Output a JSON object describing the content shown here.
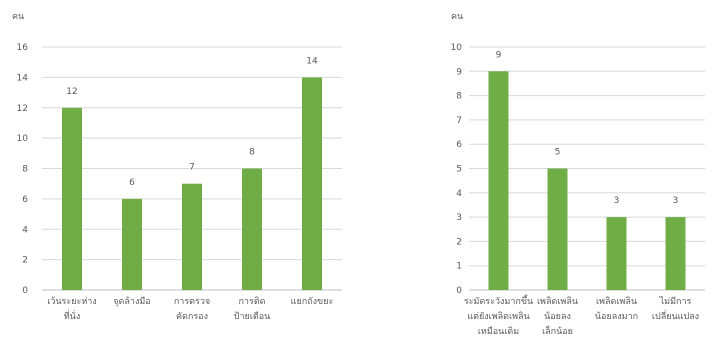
{
  "chart_data": [
    {
      "type": "bar",
      "ylabel": "คน",
      "ylim": [
        0,
        16
      ],
      "yticks": [
        0,
        2,
        4,
        6,
        8,
        10,
        12,
        14,
        16
      ],
      "grid": true,
      "bar_color": "#70ad47",
      "categories": [
        [
          "เว้นระยะห่าง",
          "ที่นั่ง"
        ],
        [
          "จุดล้างมือ"
        ],
        [
          "การตรวจ",
          "คัดกรอง"
        ],
        [
          "การติด",
          "ป้ายเตือน"
        ],
        [
          "แยกถังขยะ"
        ]
      ],
      "values": [
        12,
        6,
        7,
        8,
        14
      ]
    },
    {
      "type": "bar",
      "ylabel": "คน",
      "ylim": [
        0,
        10
      ],
      "yticks": [
        0,
        1,
        2,
        3,
        4,
        5,
        6,
        7,
        8,
        9,
        10
      ],
      "grid": true,
      "bar_color": "#70ad47",
      "categories": [
        [
          "ระมัดระวังมากขึ้น",
          "แต่ยังเพลิดเพลิน",
          "เหมือนเดิม"
        ],
        [
          "เพลิดเพลิน",
          "น้อยลง",
          "เล็กน้อย"
        ],
        [
          "เพลิดเพลิน",
          "น้อยลงมาก"
        ],
        [
          "ไม่มีการ",
          "เปลี่ยนแปลง"
        ]
      ],
      "values": [
        9,
        5,
        3,
        3
      ]
    }
  ]
}
